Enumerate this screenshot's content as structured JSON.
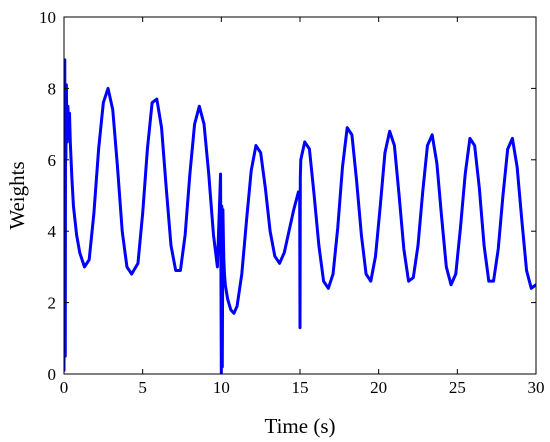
{
  "chart_data": {
    "type": "line",
    "xlabel": "Time (s)",
    "ylabel": "Weights",
    "xlim": [
      0,
      30
    ],
    "ylim": [
      0,
      10
    ],
    "xticks": [
      0,
      5,
      10,
      15,
      20,
      25,
      30
    ],
    "yticks": [
      0,
      2,
      4,
      6,
      8,
      10
    ],
    "grid": false,
    "box": true,
    "series": [
      {
        "color": "#0000ff",
        "x": [
          0,
          0.02,
          0.05,
          0.08,
          0.1,
          0.12,
          0.15,
          0.18,
          0.2,
          0.25,
          0.3,
          0.35,
          0.4,
          0.5,
          0.6,
          0.8,
          1.0,
          1.3,
          1.6,
          1.9,
          2.2,
          2.5,
          2.8,
          3.1,
          3.4,
          3.7,
          4.0,
          4.3,
          4.7,
          5.0,
          5.3,
          5.6,
          5.9,
          6.2,
          6.5,
          6.8,
          7.1,
          7.4,
          7.7,
          8.0,
          8.3,
          8.6,
          8.9,
          9.2,
          9.5,
          9.75,
          9.95,
          10.0,
          10.03,
          10.06,
          10.1,
          10.13,
          10.16,
          10.2,
          10.25,
          10.4,
          10.6,
          10.8,
          11.0,
          11.3,
          11.6,
          11.9,
          12.2,
          12.5,
          12.8,
          13.1,
          13.4,
          13.7,
          14.0,
          14.3,
          14.6,
          14.9,
          14.98,
          15.0,
          15.02,
          15.05,
          15.1,
          15.3,
          15.6,
          15.9,
          16.2,
          16.5,
          16.8,
          17.1,
          17.4,
          17.7,
          18.0,
          18.3,
          18.6,
          18.9,
          19.2,
          19.5,
          19.8,
          20.1,
          20.4,
          20.7,
          21.0,
          21.3,
          21.6,
          21.9,
          22.2,
          22.5,
          22.8,
          23.1,
          23.4,
          23.7,
          24.0,
          24.3,
          24.6,
          24.9,
          25.2,
          25.5,
          25.8,
          26.1,
          26.4,
          26.7,
          27.0,
          27.3,
          27.6,
          27.9,
          28.2,
          28.5,
          28.8,
          29.1,
          29.4,
          29.7,
          30.0
        ],
        "y": [
          0.1,
          4.5,
          8.8,
          0.5,
          7.8,
          6.0,
          8.1,
          7.0,
          6.5,
          7.5,
          6.8,
          7.3,
          6.5,
          5.5,
          4.7,
          3.9,
          3.4,
          3.0,
          3.2,
          4.5,
          6.3,
          7.6,
          8.0,
          7.4,
          5.8,
          4.0,
          3.0,
          2.8,
          3.1,
          4.5,
          6.3,
          7.6,
          7.7,
          6.9,
          5.2,
          3.6,
          2.9,
          2.9,
          3.9,
          5.6,
          7.0,
          7.5,
          7.0,
          5.6,
          3.9,
          3.0,
          5.6,
          0.0,
          4.7,
          0.2,
          4.6,
          3.8,
          3.2,
          2.8,
          2.5,
          2.1,
          1.8,
          1.7,
          1.9,
          2.8,
          4.3,
          5.7,
          6.4,
          6.2,
          5.2,
          4.0,
          3.3,
          3.1,
          3.4,
          4.0,
          4.6,
          5.1,
          5.0,
          1.3,
          5.5,
          6.0,
          6.1,
          6.5,
          6.3,
          5.0,
          3.6,
          2.6,
          2.4,
          2.8,
          4.1,
          5.8,
          6.9,
          6.7,
          5.4,
          3.9,
          2.8,
          2.6,
          3.3,
          4.7,
          6.2,
          6.8,
          6.4,
          5.0,
          3.5,
          2.6,
          2.7,
          3.6,
          5.1,
          6.4,
          6.7,
          5.9,
          4.4,
          3.0,
          2.5,
          2.8,
          4.1,
          5.6,
          6.6,
          6.4,
          5.2,
          3.6,
          2.6,
          2.6,
          3.5,
          5.0,
          6.3,
          6.6,
          5.8,
          4.3,
          2.9,
          2.4,
          2.5
        ]
      }
    ]
  }
}
